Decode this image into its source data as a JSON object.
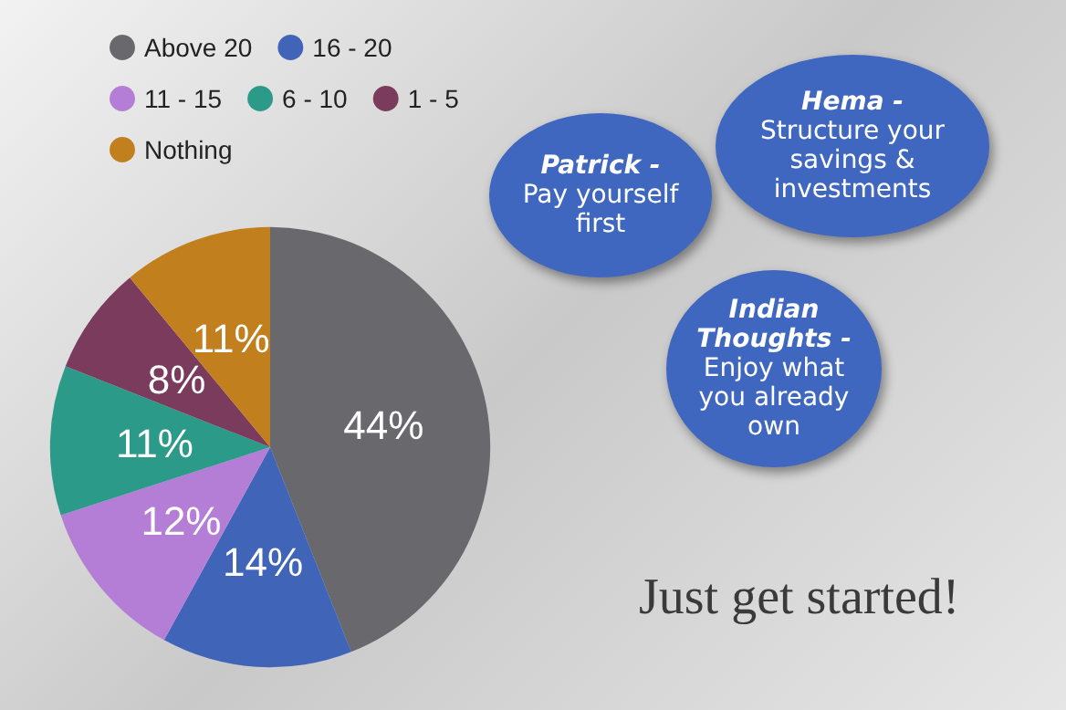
{
  "chart_data": {
    "type": "pie",
    "categories": [
      "Above 20",
      "16 - 20",
      "11 - 15",
      "6 - 10",
      "1 - 5",
      "Nothing"
    ],
    "values": [
      44,
      14,
      12,
      11,
      8,
      11
    ],
    "value_labels": [
      "44%",
      "14%",
      "12%",
      "11%",
      "8%",
      "11%"
    ],
    "colors": [
      "#69686d",
      "#4064b8",
      "#b57ed6",
      "#2c9a89",
      "#7b3b5c",
      "#c27f1e"
    ],
    "legend": "top left",
    "annotations": [
      "Patrick -",
      "Pay yourself first",
      "Hema -",
      "Structure your savings & investments",
      "Indian Thoughts -",
      "Enjoy what you already own",
      "Just get started!"
    ]
  }
}
